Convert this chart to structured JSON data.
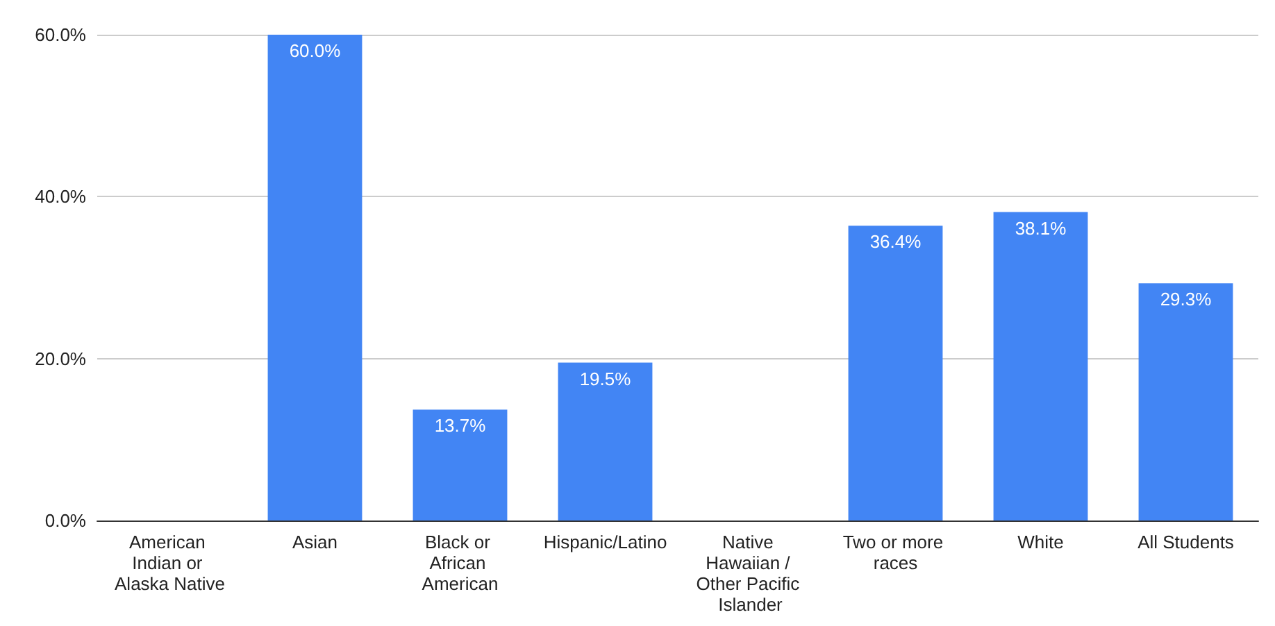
{
  "chart_data": {
    "type": "bar",
    "categories": [
      "American Indian or Alaska Native",
      "Asian",
      "Black or African American",
      "Hispanic/Latino",
      "Native Hawaiian / Other Pacific Islander",
      "Two or more races",
      "White",
      "All Students"
    ],
    "values": [
      null,
      60.0,
      13.7,
      19.5,
      null,
      36.4,
      38.1,
      29.3
    ],
    "value_labels": [
      null,
      "60.0%",
      "13.7%",
      "19.5%",
      null,
      "36.4%",
      "38.1%",
      "29.3%"
    ],
    "color": "#4285f4",
    "ylim": [
      0,
      60
    ],
    "yticks": [
      {
        "value": 0,
        "label": "0.0%"
      },
      {
        "value": 20,
        "label": "20.0%"
      },
      {
        "value": 40,
        "label": "40.0%"
      },
      {
        "value": 60,
        "label": "60.0%"
      }
    ],
    "grid": "y"
  }
}
